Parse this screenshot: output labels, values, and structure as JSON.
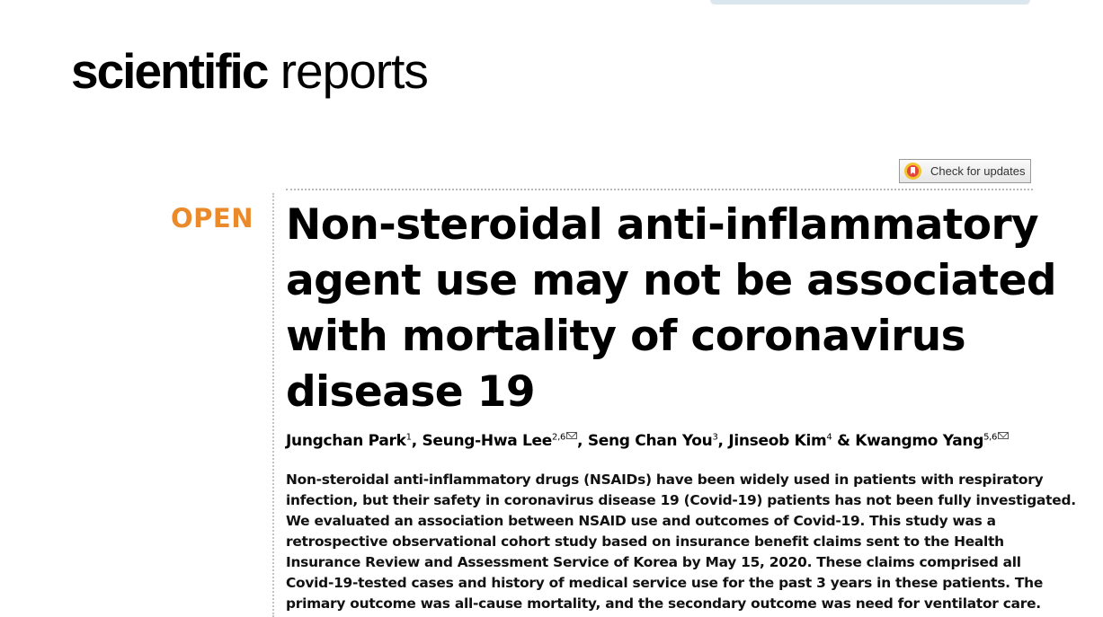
{
  "journal": {
    "name_bold": "scientific",
    "name_light": "reports"
  },
  "check_updates": {
    "label": "Check for updates"
  },
  "open_access_label": "OPEN",
  "article": {
    "title_lines": [
      "Non-steroidal anti-inflammatory",
      "agent use may not be associated",
      "with mortality of coronavirus",
      "disease 19"
    ],
    "authors": [
      {
        "name": "Jungchan Park",
        "sup": "1",
        "sep": ", "
      },
      {
        "name": "Seung-Hwa Lee",
        "sup": "2,6",
        "corresponding": true,
        "sep": ", "
      },
      {
        "name": "Seng Chan You",
        "sup": "3",
        "sep": ", "
      },
      {
        "name": "Jinseob Kim",
        "sup": "4",
        "sep": " & "
      },
      {
        "name": "Kwangmo Yang",
        "sup": "5,6",
        "corresponding": true,
        "sep": ""
      }
    ],
    "abstract_lines": [
      "Non-steroidal anti-inflammatory drugs (NSAIDs) have been widely used in patients with respiratory",
      "infection, but their safety in coronavirus disease 19 (Covid-19) patients has not been fully investigated.",
      "We evaluated an association between NSAID use and outcomes of Covid-19. This study was a",
      "retrospective observational cohort study based on insurance benefit claims sent to the Health",
      "Insurance Review and Assessment Service of Korea by May 15, 2020. These claims comprised all",
      "Covid-19-tested cases and history of medical service use for the past 3 years in these patients. The",
      "primary outcome was all-cause mortality, and the secondary outcome was need for ventilator care."
    ]
  },
  "colors": {
    "open_accent": "#ea8a2a",
    "title": "#000000",
    "rule": "#b9b9b9"
  }
}
